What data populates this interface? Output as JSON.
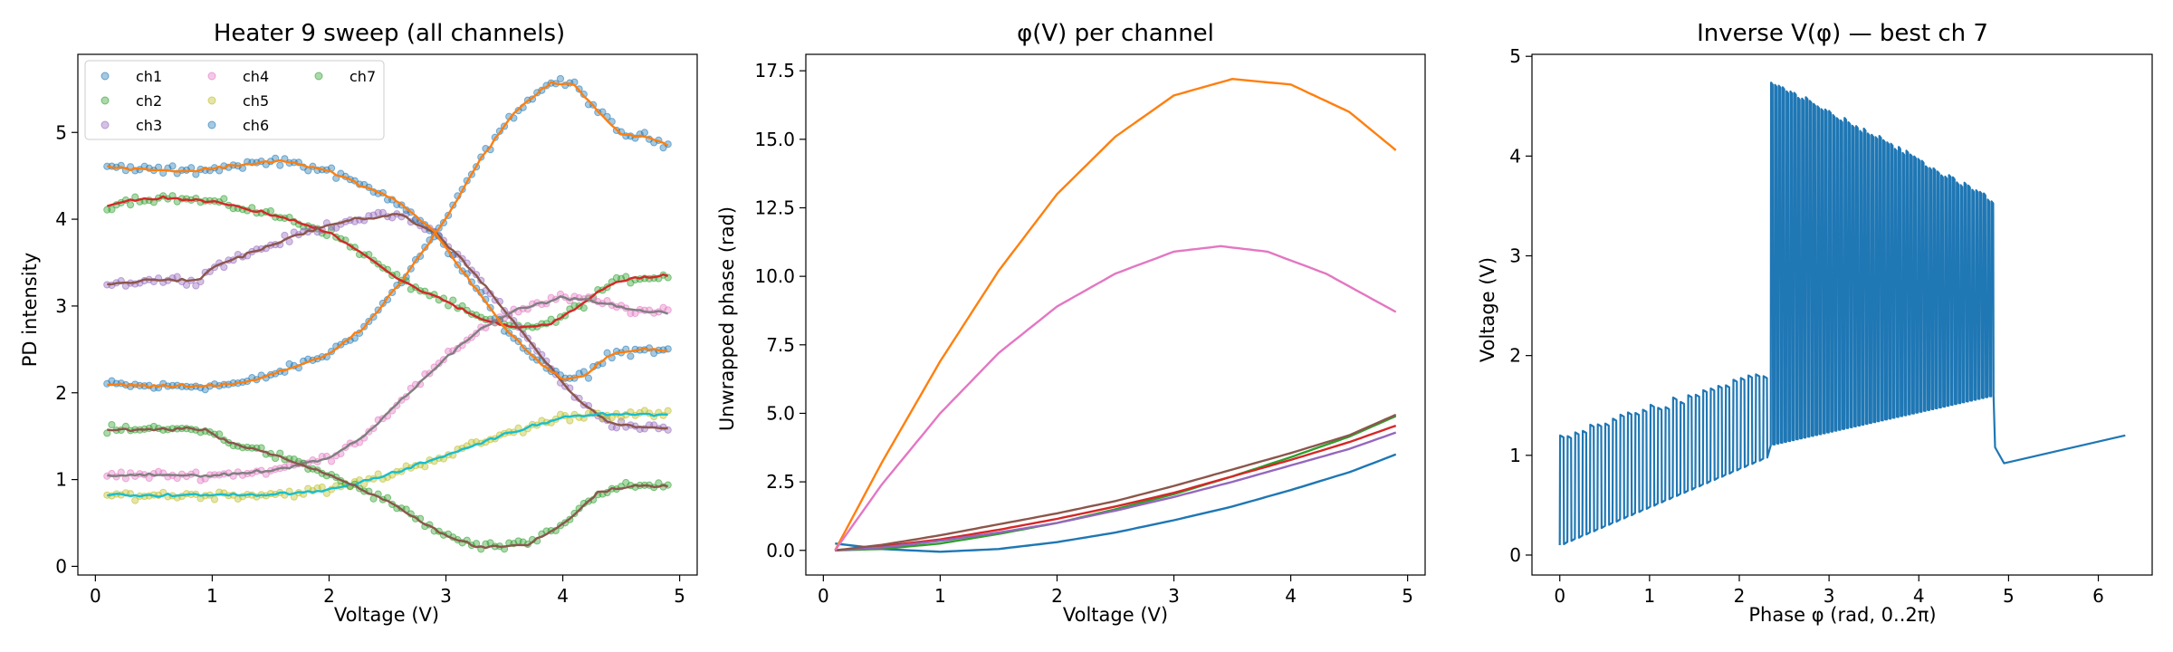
{
  "chart_data": [
    {
      "type": "scatter",
      "title": "Heater 9 sweep (all channels)",
      "xlabel": "Voltage (V)",
      "ylabel": "PD intensity",
      "xlim": [
        -0.15,
        5.15
      ],
      "ylim": [
        -0.1,
        5.9
      ],
      "xticks": [
        0,
        1,
        2,
        3,
        4,
        5
      ],
      "yticks": [
        0,
        1,
        2,
        3,
        4,
        5
      ],
      "legend": {
        "placement": "top-left",
        "columns": 3
      },
      "series": [
        {
          "name": "ch1",
          "marker_color": "#1f77b4",
          "fit_color": "#ff7f0e",
          "points": [
            [
              0.1,
              2.1
            ],
            [
              0.5,
              2.07
            ],
            [
              0.8,
              2.08
            ],
            [
              1.0,
              2.08
            ],
            [
              1.3,
              2.12
            ],
            [
              1.6,
              2.25
            ],
            [
              2.0,
              2.45
            ],
            [
              2.3,
              2.75
            ],
            [
              2.6,
              3.25
            ],
            [
              3.0,
              4.0
            ],
            [
              3.3,
              4.7
            ],
            [
              3.6,
              5.25
            ],
            [
              3.9,
              5.58
            ],
            [
              4.1,
              5.55
            ],
            [
              4.3,
              5.25
            ],
            [
              4.5,
              4.98
            ],
            [
              4.7,
              4.95
            ],
            [
              4.9,
              4.85
            ]
          ]
        },
        {
          "name": "ch2",
          "marker_color": "#2ca02c",
          "fit_color": "#d62728",
          "points": [
            [
              0.1,
              4.15
            ],
            [
              0.3,
              4.22
            ],
            [
              0.6,
              4.25
            ],
            [
              1.0,
              4.2
            ],
            [
              1.3,
              4.12
            ],
            [
              1.6,
              4.02
            ],
            [
              2.0,
              3.85
            ],
            [
              2.3,
              3.6
            ],
            [
              2.6,
              3.3
            ],
            [
              3.0,
              3.05
            ],
            [
              3.3,
              2.85
            ],
            [
              3.6,
              2.75
            ],
            [
              3.9,
              2.8
            ],
            [
              4.2,
              3.05
            ],
            [
              4.4,
              3.25
            ],
            [
              4.6,
              3.32
            ],
            [
              4.9,
              3.35
            ]
          ]
        },
        {
          "name": "ch3",
          "marker_color": "#9467bd",
          "fit_color": "#8c564b",
          "points": [
            [
              0.1,
              3.25
            ],
            [
              0.5,
              3.3
            ],
            [
              0.9,
              3.3
            ],
            [
              1.0,
              3.45
            ],
            [
              1.4,
              3.65
            ],
            [
              1.8,
              3.85
            ],
            [
              2.2,
              4.0
            ],
            [
              2.6,
              4.05
            ],
            [
              2.9,
              3.85
            ],
            [
              3.2,
              3.45
            ],
            [
              3.5,
              2.95
            ],
            [
              3.8,
              2.45
            ],
            [
              4.1,
              1.95
            ],
            [
              4.4,
              1.65
            ],
            [
              4.7,
              1.6
            ],
            [
              4.9,
              1.58
            ]
          ]
        },
        {
          "name": "ch4",
          "marker_color": "#e377c2",
          "fit_color": "#7f7f7f",
          "points": [
            [
              0.1,
              1.05
            ],
            [
              0.5,
              1.05
            ],
            [
              1.0,
              1.05
            ],
            [
              1.5,
              1.1
            ],
            [
              2.0,
              1.25
            ],
            [
              2.3,
              1.5
            ],
            [
              2.6,
              1.9
            ],
            [
              3.0,
              2.4
            ],
            [
              3.3,
              2.75
            ],
            [
              3.6,
              2.95
            ],
            [
              4.0,
              3.1
            ],
            [
              4.3,
              3.05
            ],
            [
              4.6,
              2.95
            ],
            [
              4.9,
              2.92
            ]
          ]
        },
        {
          "name": "ch5",
          "marker_color": "#bcbd22",
          "fit_color": "#17becf",
          "points": [
            [
              0.1,
              0.82
            ],
            [
              0.5,
              0.82
            ],
            [
              1.0,
              0.82
            ],
            [
              1.5,
              0.83
            ],
            [
              2.0,
              0.88
            ],
            [
              2.5,
              1.05
            ],
            [
              3.0,
              1.28
            ],
            [
              3.5,
              1.52
            ],
            [
              4.0,
              1.72
            ],
            [
              4.3,
              1.76
            ],
            [
              4.6,
              1.75
            ],
            [
              4.9,
              1.75
            ]
          ]
        },
        {
          "name": "ch6",
          "marker_color": "#1f77b4",
          "fit_color": "#ff7f0e",
          "points": [
            [
              0.1,
              4.6
            ],
            [
              0.4,
              4.58
            ],
            [
              0.8,
              4.55
            ],
            [
              1.2,
              4.62
            ],
            [
              1.6,
              4.68
            ],
            [
              2.0,
              4.55
            ],
            [
              2.3,
              4.38
            ],
            [
              2.6,
              4.2
            ],
            [
              2.9,
              3.85
            ],
            [
              3.2,
              3.3
            ],
            [
              3.5,
              2.75
            ],
            [
              3.8,
              2.35
            ],
            [
              4.0,
              2.15
            ],
            [
              4.2,
              2.2
            ],
            [
              4.4,
              2.45
            ],
            [
              4.7,
              2.5
            ],
            [
              4.9,
              2.48
            ]
          ]
        },
        {
          "name": "ch7",
          "marker_color": "#2ca02c",
          "fit_color": "#8c564b",
          "points": [
            [
              0.1,
              1.57
            ],
            [
              0.5,
              1.58
            ],
            [
              0.95,
              1.58
            ],
            [
              1.1,
              1.45
            ],
            [
              1.5,
              1.3
            ],
            [
              2.0,
              1.05
            ],
            [
              2.5,
              0.75
            ],
            [
              3.0,
              0.35
            ],
            [
              3.3,
              0.22
            ],
            [
              3.7,
              0.25
            ],
            [
              4.0,
              0.48
            ],
            [
              4.3,
              0.85
            ],
            [
              4.6,
              0.93
            ],
            [
              4.9,
              0.92
            ]
          ]
        }
      ]
    },
    {
      "type": "line",
      "title": "φ(V) per channel",
      "xlabel": "Voltage (V)",
      "ylabel": "Unwrapped phase (rad)",
      "xlim": [
        -0.15,
        5.15
      ],
      "ylim": [
        -0.9,
        18.1
      ],
      "xticks": [
        0,
        1,
        2,
        3,
        4,
        5
      ],
      "yticks": [
        0.0,
        2.5,
        5.0,
        7.5,
        10.0,
        12.5,
        15.0,
        17.5
      ],
      "ytick_labels": [
        "0.0",
        "2.5",
        "5.0",
        "7.5",
        "10.0",
        "12.5",
        "15.0",
        "17.5"
      ],
      "series": [
        {
          "color": "#1f77b4",
          "points": [
            [
              0.1,
              0.25
            ],
            [
              0.5,
              0.05
            ],
            [
              1.0,
              -0.05
            ],
            [
              1.5,
              0.05
            ],
            [
              2.0,
              0.3
            ],
            [
              2.5,
              0.65
            ],
            [
              3.0,
              1.1
            ],
            [
              3.5,
              1.6
            ],
            [
              4.0,
              2.2
            ],
            [
              4.5,
              2.85
            ],
            [
              4.9,
              3.5
            ]
          ]
        },
        {
          "color": "#ff7f0e",
          "points": [
            [
              0.1,
              0.0
            ],
            [
              0.5,
              3.2
            ],
            [
              1.0,
              6.9
            ],
            [
              1.5,
              10.2
            ],
            [
              2.0,
              13.0
            ],
            [
              2.5,
              15.1
            ],
            [
              3.0,
              16.6
            ],
            [
              3.5,
              17.2
            ],
            [
              4.0,
              17.0
            ],
            [
              4.5,
              16.0
            ],
            [
              4.9,
              14.6
            ]
          ]
        },
        {
          "color": "#2ca02c",
          "points": [
            [
              0.1,
              0.0
            ],
            [
              0.5,
              0.05
            ],
            [
              1.0,
              0.25
            ],
            [
              1.5,
              0.6
            ],
            [
              2.0,
              1.0
            ],
            [
              2.5,
              1.5
            ],
            [
              3.0,
              2.05
            ],
            [
              3.5,
              2.7
            ],
            [
              4.0,
              3.4
            ],
            [
              4.5,
              4.15
            ],
            [
              4.9,
              4.9
            ]
          ]
        },
        {
          "color": "#d62728",
          "points": [
            [
              0.1,
              0.0
            ],
            [
              0.5,
              0.15
            ],
            [
              1.0,
              0.4
            ],
            [
              1.5,
              0.75
            ],
            [
              2.0,
              1.15
            ],
            [
              2.5,
              1.6
            ],
            [
              3.0,
              2.1
            ],
            [
              3.5,
              2.7
            ],
            [
              4.0,
              3.3
            ],
            [
              4.5,
              3.95
            ],
            [
              4.9,
              4.55
            ]
          ]
        },
        {
          "color": "#9467bd",
          "points": [
            [
              0.1,
              0.0
            ],
            [
              0.5,
              0.1
            ],
            [
              1.0,
              0.35
            ],
            [
              1.5,
              0.65
            ],
            [
              2.0,
              1.0
            ],
            [
              2.5,
              1.45
            ],
            [
              3.0,
              1.95
            ],
            [
              3.5,
              2.5
            ],
            [
              4.0,
              3.1
            ],
            [
              4.5,
              3.7
            ],
            [
              4.9,
              4.3
            ]
          ]
        },
        {
          "color": "#8c564b",
          "points": [
            [
              0.1,
              0.0
            ],
            [
              0.5,
              0.2
            ],
            [
              1.0,
              0.55
            ],
            [
              1.5,
              0.95
            ],
            [
              2.0,
              1.35
            ],
            [
              2.5,
              1.8
            ],
            [
              3.0,
              2.35
            ],
            [
              3.5,
              2.95
            ],
            [
              4.0,
              3.55
            ],
            [
              4.5,
              4.2
            ],
            [
              4.9,
              4.95
            ]
          ]
        },
        {
          "color": "#e377c2",
          "points": [
            [
              0.1,
              0.0
            ],
            [
              0.5,
              2.4
            ],
            [
              1.0,
              5.0
            ],
            [
              1.5,
              7.2
            ],
            [
              2.0,
              8.9
            ],
            [
              2.5,
              10.1
            ],
            [
              3.0,
              10.9
            ],
            [
              3.4,
              11.1
            ],
            [
              3.8,
              10.9
            ],
            [
              4.3,
              10.1
            ],
            [
              4.9,
              8.7
            ]
          ]
        }
      ]
    },
    {
      "type": "line",
      "title": "Inverse V(φ) — best ch 7",
      "xlabel": "Phase φ (rad, 0..2π)",
      "ylabel": "Voltage (V)",
      "xlim": [
        -0.31,
        6.6
      ],
      "ylim": [
        -0.2,
        5.02
      ],
      "xticks": [
        0,
        1,
        2,
        3,
        4,
        5,
        6
      ],
      "yticks": [
        0,
        1,
        2,
        3,
        4,
        5
      ],
      "color": "#1f77b4",
      "segments": [
        {
          "phi_start": 0.0,
          "phi_end": 2.35,
          "lower_start": 0.1,
          "lower_end": 1.0,
          "upper_start": 1.2,
          "upper_end": 1.85,
          "spikes": 28
        },
        {
          "phi_start": 2.35,
          "phi_end": 4.85,
          "lower_start": 1.1,
          "lower_end": 1.6,
          "upper_start": 4.75,
          "upper_end": 3.55,
          "spikes": 58
        },
        {
          "tail": [
            [
              4.85,
              1.08
            ],
            [
              4.95,
              0.92
            ],
            [
              6.3,
              1.2
            ]
          ]
        }
      ]
    }
  ]
}
